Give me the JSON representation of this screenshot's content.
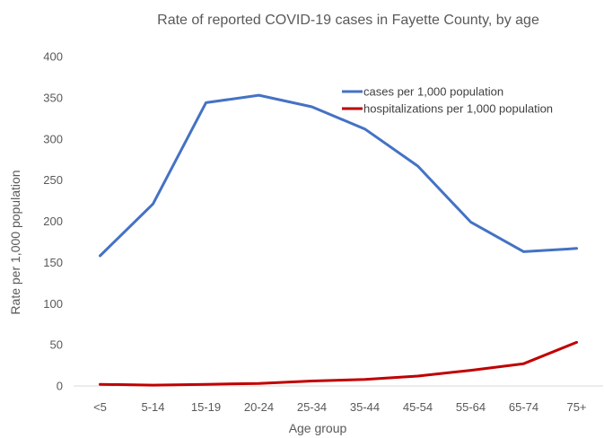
{
  "chart_data": {
    "type": "line",
    "title": "Rate of reported COVID-19 cases in Fayette County, by age",
    "xlabel": "Age group",
    "ylabel": "Rate per 1,000 population",
    "categories": [
      "<5",
      "5-14",
      "15-19",
      "20-24",
      "25-34",
      "35-44",
      "45-54",
      "55-64",
      "65-74",
      "75+"
    ],
    "ylim": [
      0,
      400
    ],
    "yticks": [
      0,
      50,
      100,
      150,
      200,
      250,
      300,
      350,
      400
    ],
    "grid": false,
    "legend_position": "top-right",
    "series": [
      {
        "name": "cases per 1,000 population",
        "color": "#4472C4",
        "values": [
          158,
          221,
          344,
          353,
          339,
          312,
          267,
          199,
          163,
          167
        ]
      },
      {
        "name": "hospitalizations per 1,000 population",
        "color": "#C00000",
        "values": [
          2,
          1,
          2,
          3,
          6,
          8,
          12,
          19,
          27,
          53
        ]
      }
    ]
  }
}
